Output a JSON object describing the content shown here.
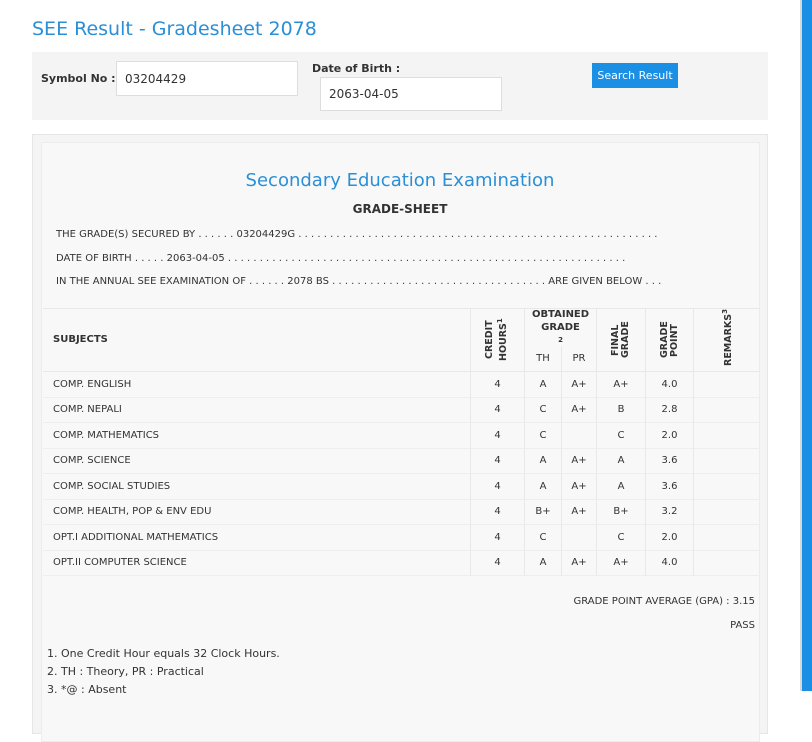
{
  "header": {
    "title": "SEE Result - Gradesheet 2078"
  },
  "form": {
    "symbol_label": "Symbol No :",
    "symbol_value": "03204429",
    "dob_label": "Date of Birth :",
    "dob_value": "2063-04-05",
    "button": "Search Result"
  },
  "sheet": {
    "title": "Secondary Education Examination",
    "subtitle": "GRADE-SHEET",
    "lines": [
      "THE GRADE(S) SECURED BY . . . . . . 03204429G . . . . . . . . . . . . . . . . . . . . . . . . . . . . . . . . . . . . . . . . . . . . . . . . . . . . . . . . .",
      "DATE OF BIRTH . . . . . 2063-04-05 . . . . . . . . . . . . . . . . . . . . . . . . . . . . . . . . . . . . . . . . . . . . . . . . . . . . . . . . . . . . . . .",
      "IN THE ANNUAL SEE EXAMINATION OF . . . . . . 2078 BS . . . . . . . . . . . . . . . . . . . . . . . . . . . . . . . . . . ARE GIVEN BELOW . . ."
    ]
  },
  "table": {
    "headers": {
      "subjects": "SUBJECTS",
      "credit": "CREDIT HOURS",
      "credit_sup": "1",
      "obtained": "OBTAINED GRADE",
      "obtained_sup": "2",
      "th": "TH",
      "pr": "PR",
      "final": "FINAL GRADE",
      "point": "GRADE POINT",
      "remarks": "REMARKS",
      "remarks_sup": "3"
    },
    "rows": [
      [
        "COMP. ENGLISH",
        "4",
        "A",
        "A+",
        "A+",
        "4.0",
        null
      ],
      [
        "COMP. NEPALI",
        "4",
        "C",
        "A+",
        "B",
        "2.8",
        null
      ],
      [
        "COMP. MATHEMATICS",
        "4",
        "C",
        null,
        "C",
        "2.0",
        null
      ],
      [
        "COMP. SCIENCE",
        "4",
        "A",
        "A+",
        "A",
        "3.6",
        null
      ],
      [
        "COMP. SOCIAL STUDIES",
        "4",
        "A",
        "A+",
        "A",
        "3.6",
        null
      ],
      [
        "COMP. HEALTH, POP & ENV EDU",
        "4",
        "B+",
        "A+",
        "B+",
        "3.2",
        null
      ],
      [
        "OPT.I ADDITIONAL MATHEMATICS",
        "4",
        "C",
        null,
        "C",
        "2.0",
        null
      ],
      [
        "OPT.II COMPUTER SCIENCE",
        "4",
        "A",
        "A+",
        "A+",
        "4.0",
        null
      ]
    ]
  },
  "summary": {
    "gpa": "GRADE POINT AVERAGE (GPA) : 3.15",
    "result": "PASS"
  },
  "notes": [
    "1. One Credit Hour equals 32 Clock Hours.",
    "2. TH : Theory, PR : Practical",
    "3. *@ : Absent"
  ]
}
